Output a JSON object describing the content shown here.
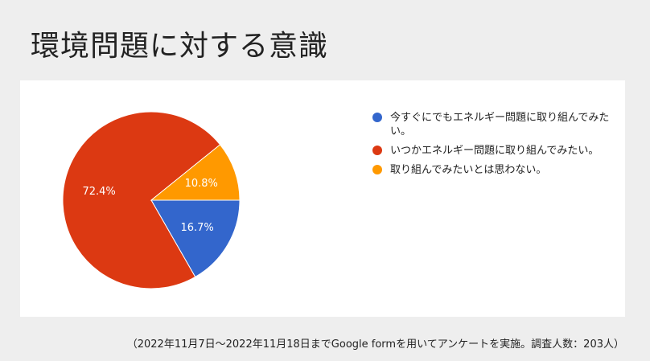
{
  "page": {
    "title": "環境問題に対する意識",
    "footnote": "（2022年11月7日〜2022年11月18日までGoogle formを用いてアンケートを実施。調査人数：203人）"
  },
  "chart_data": {
    "type": "pie",
    "slices": [
      {
        "label": "今すぐにでもエネルギー問題に取り組んでみたい。",
        "value": 16.7,
        "value_label": "16.7%",
        "color": "#3366cc"
      },
      {
        "label": "いつかエネルギー問題に取り組んでみたい。",
        "value": 72.4,
        "value_label": "72.4%",
        "color": "#dc3912"
      },
      {
        "label": "取り組んでみたいとは思わない。",
        "value": 10.8,
        "value_label": "10.8%",
        "color": "#ff9900"
      }
    ],
    "legend_position": "right"
  }
}
